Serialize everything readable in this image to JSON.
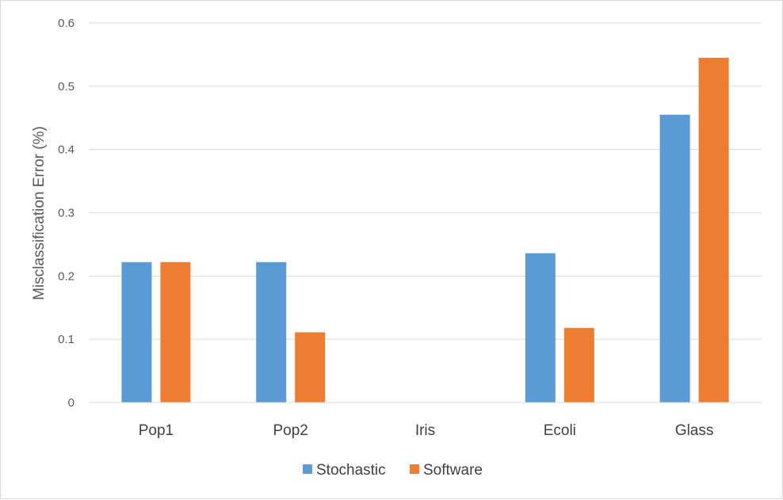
{
  "chart_data": {
    "type": "bar",
    "title": "",
    "xlabel": "",
    "ylabel": "Misclassification Error (%)",
    "categories": [
      "Pop1",
      "Pop2",
      "Iris",
      "Ecoli",
      "Glass"
    ],
    "series": [
      {
        "name": "Stochastic",
        "color": "#5b9bd5",
        "values": [
          0.222,
          0.222,
          0,
          0.236,
          0.455
        ]
      },
      {
        "name": "Software",
        "color": "#ed7d31",
        "values": [
          0.222,
          0.111,
          0,
          0.118,
          0.545
        ]
      }
    ],
    "ylim": [
      0,
      0.6
    ],
    "yticks": [
      "0",
      "0.1",
      "0.2",
      "0.3",
      "0.4",
      "0.5",
      "0.6"
    ],
    "grid": true,
    "legend_position": "bottom"
  }
}
